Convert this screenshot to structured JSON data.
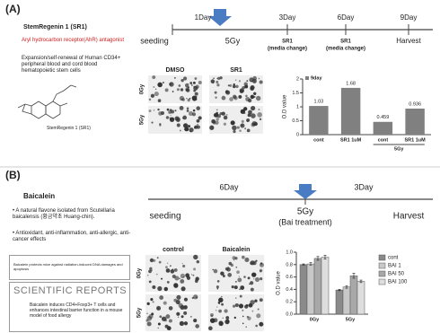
{
  "panel_a": {
    "label": "(A)",
    "drug": "StemRegenin 1 (SR1)",
    "bullets": [
      "Aryl hydrocarbon receptor(AhR) antagonist",
      "Expansion/self-renewal of Human CD34+ peripheral blood and cord blood hematopoietic stem cells"
    ],
    "structure_caption": "StemRegenin 1 (SR1)",
    "timeline": {
      "days": [
        "1Day",
        "3Day",
        "6Day",
        "9Day"
      ],
      "events": [
        "seeding",
        "5Gy",
        "SR1",
        "(media change)",
        "SR1",
        "(media change)",
        "Harvest"
      ]
    },
    "images": {
      "columns": [
        "DMSO",
        "SR1"
      ],
      "rows": [
        "0Gy",
        "5Gy"
      ]
    }
  },
  "panel_b": {
    "label": "(B)",
    "drug": "Baicalein",
    "bullets": [
      "• A natural flavone isolated from Scutellaria baicalensis (황금약초 Huang-chin).",
      "• Antioxidant, anti-inflammation, anti-allergic, anti-cancer effects"
    ],
    "papers": [
      "Baicalein protects mice against radiation-induced DNA damages and apoptosis",
      "Baicalein induces CD4+Foxp3+ T cells and enhances intestinal barrier function in a mouse model of food allergy"
    ],
    "journal": "SCIENTIFIC REPORTS",
    "timeline": {
      "days": [
        "6Day",
        "3Day"
      ],
      "events": [
        "seeding",
        "5Gy",
        "(Bai treatment)",
        "Harvest"
      ]
    },
    "images": {
      "columns": [
        "control",
        "Baicalein"
      ],
      "rows": [
        "0Gy",
        "5Gy"
      ]
    }
  },
  "chart_data": [
    {
      "type": "bar",
      "y_label": "O.D value",
      "categories": [
        "cont",
        "SR1 1uM",
        "cont",
        "SR1 1uM"
      ],
      "group_label": "5Gy",
      "series": [
        {
          "name": "9day",
          "color": "#808080",
          "values": [
            1.03,
            1.68,
            0.459,
            0.936
          ]
        }
      ],
      "ylim": [
        0,
        2
      ],
      "yticks": [
        0,
        0.5,
        1,
        1.5,
        2
      ],
      "legend": "top-left"
    },
    {
      "type": "grouped-bar",
      "y_label": "O.D value",
      "categories": [
        "0Gy",
        "5Gy"
      ],
      "series": [
        {
          "name": "cont",
          "color": "#8a8a8a",
          "values": [
            0.8,
            0.39
          ],
          "errors": [
            0.01,
            0.01
          ]
        },
        {
          "name": "BAI 1",
          "color": "#c8c8c8",
          "values": [
            0.81,
            0.44
          ],
          "errors": [
            0.02,
            0.02
          ]
        },
        {
          "name": "BAI 50",
          "color": "#a8a8a8",
          "values": [
            0.9,
            0.62
          ],
          "errors": [
            0.03,
            0.04
          ]
        },
        {
          "name": "BAI 100",
          "color": "#dedede",
          "values": [
            0.92,
            0.53
          ],
          "errors": [
            0.03,
            0.02
          ]
        }
      ],
      "ylim": [
        0,
        1
      ],
      "yticks": [
        {
          "value": 0,
          "label": "0.0"
        },
        0.2,
        0.4,
        0.6,
        0.8,
        {
          "value": 1,
          "label": "1.0"
        }
      ],
      "legend": "right"
    }
  ]
}
